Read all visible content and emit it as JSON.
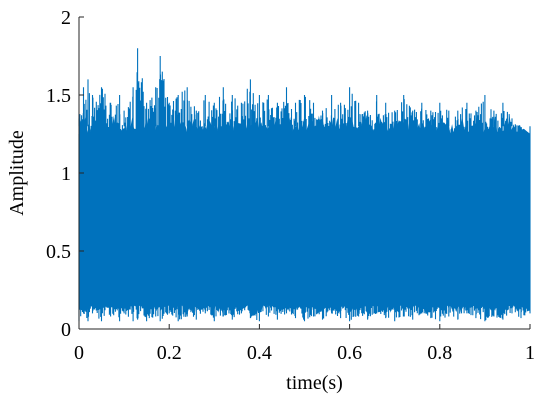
{
  "chart_data": {
    "type": "line",
    "xlabel": "time(s)",
    "ylabel": "Amplitude",
    "xlim": [
      0,
      1
    ],
    "ylim": [
      0,
      2
    ],
    "x_ticks": [
      0,
      0.2,
      0.4,
      0.6,
      0.8,
      1
    ],
    "x_tick_labels": [
      "0",
      "0.2",
      "0.4",
      "0.6",
      "0.8",
      "1"
    ],
    "y_ticks": [
      0,
      0.5,
      1,
      1.5,
      2
    ],
    "y_tick_labels": [
      "0",
      "0.5",
      "1",
      "1.5",
      "2"
    ],
    "grid": false,
    "line_color": "#0072BD",
    "series": [
      {
        "x": [
          0,
          0.01,
          0.02,
          0.03,
          0.05,
          0.07,
          0.09,
          0.1,
          0.12,
          0.13,
          0.15,
          0.17,
          0.18,
          0.2,
          0.22,
          0.24,
          0.26,
          0.28,
          0.3,
          0.32,
          0.34,
          0.36,
          0.38,
          0.4,
          0.42,
          0.44,
          0.46,
          0.48,
          0.5,
          0.52,
          0.54,
          0.56,
          0.58,
          0.6,
          0.62,
          0.64,
          0.66,
          0.68,
          0.7,
          0.72,
          0.74,
          0.76,
          0.78,
          0.8,
          0.82,
          0.84,
          0.86,
          0.88,
          0.9,
          0.92,
          0.94,
          0.96,
          0.98,
          1.0
        ],
        "envelope_upper": [
          1.35,
          1.55,
          1.6,
          1.5,
          1.55,
          1.45,
          1.5,
          1.4,
          1.55,
          1.8,
          1.45,
          1.55,
          1.75,
          1.45,
          1.5,
          1.55,
          1.4,
          1.5,
          1.45,
          1.55,
          1.5,
          1.45,
          1.6,
          1.5,
          1.5,
          1.45,
          1.55,
          1.45,
          1.5,
          1.45,
          1.4,
          1.5,
          1.45,
          1.55,
          1.45,
          1.4,
          1.5,
          1.45,
          1.4,
          1.5,
          1.4,
          1.45,
          1.4,
          1.45,
          1.4,
          1.4,
          1.45,
          1.4,
          1.5,
          1.4,
          1.45,
          1.35,
          1.3,
          1.25
        ],
        "envelope_lower": [
          0.05,
          0.1,
          0.05,
          0.1,
          0.05,
          0.08,
          0.05,
          0.1,
          0.05,
          0.06,
          0.05,
          0.08,
          0.05,
          0.1,
          0.05,
          0.08,
          0.06,
          0.1,
          0.05,
          0.08,
          0.06,
          0.1,
          0.07,
          0.05,
          0.08,
          0.06,
          0.1,
          0.07,
          0.05,
          0.08,
          0.06,
          0.1,
          0.07,
          0.05,
          0.08,
          0.06,
          0.1,
          0.07,
          0.05,
          0.08,
          0.06,
          0.1,
          0.07,
          0.05,
          0.08,
          0.06,
          0.1,
          0.07,
          0.05,
          0.08,
          0.06,
          0.1,
          0.07,
          0.1
        ],
        "body_upper": 1.3,
        "body_lower": 0.15
      }
    ]
  }
}
